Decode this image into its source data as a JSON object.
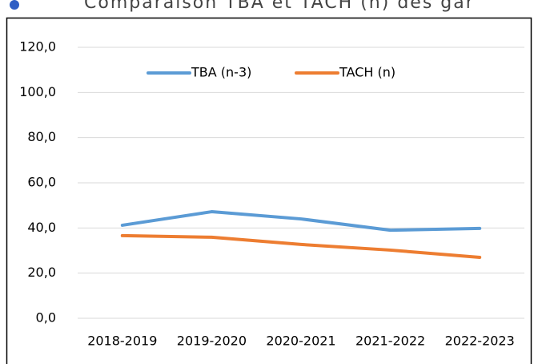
{
  "chart_data": {
    "type": "line",
    "title": "Comparaison TBA et TACH (n) des gar",
    "categories": [
      "2018-2019",
      "2019-2020",
      "2020-2021",
      "2021-2022",
      "2022-2023"
    ],
    "series": [
      {
        "name": "TBA (n-3)",
        "color": "#5b9bd5",
        "values": [
          41.2,
          47.2,
          44.0,
          39.0,
          39.8
        ]
      },
      {
        "name": "TACH (n)",
        "color": "#ed7d31",
        "values": [
          36.6,
          35.9,
          32.7,
          30.2,
          27.0
        ]
      }
    ],
    "ylim": [
      0,
      120
    ],
    "yticks": [
      {
        "value": 0,
        "label": "0,0"
      },
      {
        "value": 20,
        "label": "20,0"
      },
      {
        "value": 40,
        "label": "40,0"
      },
      {
        "value": 60,
        "label": "60,0"
      },
      {
        "value": 80,
        "label": "80,0"
      },
      {
        "value": 100,
        "label": "100,0"
      },
      {
        "value": 120,
        "label": "120,0"
      }
    ],
    "grid": true,
    "legend": "top"
  }
}
